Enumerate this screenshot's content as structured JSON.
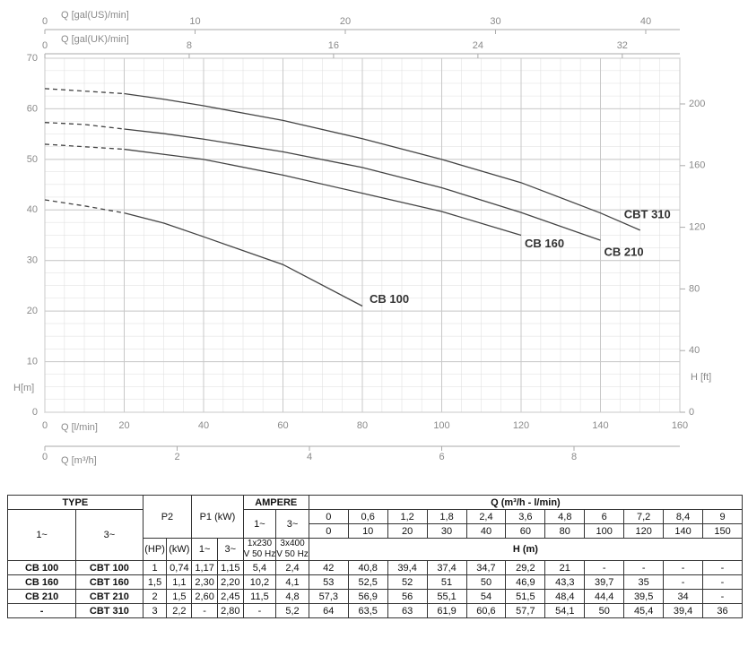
{
  "chart_data": {
    "type": "line",
    "x_label": "Q [l/min]",
    "y_label": "H[m]",
    "x": [
      0,
      10,
      20,
      30,
      40,
      60,
      80,
      100,
      120,
      140,
      150
    ],
    "xlim": [
      0,
      160
    ],
    "xticks": [
      0,
      20,
      40,
      60,
      80,
      100,
      120,
      140,
      160
    ],
    "ylim": [
      0,
      70
    ],
    "yticks": [
      0,
      10,
      20,
      30,
      40,
      50,
      60,
      70
    ],
    "grid": true,
    "series": [
      {
        "name": "CB 100",
        "color": "#444444",
        "values": [
          42,
          40.8,
          39.4,
          37.4,
          34.7,
          29.2,
          21,
          null,
          null,
          null,
          null
        ]
      },
      {
        "name": "CB 160",
        "color": "#444444",
        "values": [
          53,
          52.5,
          52,
          51,
          50,
          46.9,
          43.3,
          39.7,
          35,
          null,
          null
        ]
      },
      {
        "name": "CB 210",
        "color": "#444444",
        "values": [
          57.3,
          56.9,
          56,
          55.1,
          54,
          51.5,
          48.4,
          44.4,
          39.5,
          34,
          null
        ]
      },
      {
        "name": "CBT 310",
        "color": "#444444",
        "values": [
          64,
          63.5,
          63,
          61.9,
          60.6,
          57.7,
          54.1,
          50,
          45.4,
          39.4,
          36
        ]
      }
    ],
    "extra_axes": [
      {
        "side": "top",
        "label": "Q [gal(US)/min]",
        "lim": [
          0,
          42.27
        ],
        "ticks": [
          0,
          10,
          20,
          30,
          40
        ]
      },
      {
        "side": "top",
        "label": "Q [gal(UK)/min]",
        "lim": [
          0,
          35.19
        ],
        "ticks": [
          0,
          8,
          16,
          24,
          32
        ]
      },
      {
        "side": "bottom",
        "label": "Q [m³/h]",
        "lim": [
          0,
          9.6
        ],
        "ticks": [
          0,
          2,
          4,
          6,
          8
        ]
      },
      {
        "side": "right",
        "label": "H [ft]",
        "lim": [
          0,
          229.66
        ],
        "ticks": [
          0,
          40,
          80,
          120,
          160,
          200
        ]
      }
    ]
  },
  "table": {
    "type_header": "TYPE",
    "phase1": "1~",
    "phase3": "3~",
    "p2_header": "P2",
    "p2_units": [
      "(HP)",
      "(kW)"
    ],
    "p1_header": "P1 (kW)",
    "ampere_header": "AMPERE",
    "ampere_voltage": [
      "1x230 V 50 Hz",
      "3x400 V 50 Hz"
    ],
    "q_header": "Q (m³/h - l/min)",
    "q_m3h": [
      "0",
      "0,6",
      "1,2",
      "1,8",
      "2,4",
      "3,6",
      "4,8",
      "6",
      "7,2",
      "8,4",
      "9"
    ],
    "q_lmin": [
      "0",
      "10",
      "20",
      "30",
      "40",
      "60",
      "80",
      "100",
      "120",
      "140",
      "150"
    ],
    "h_header": "H (m)",
    "rows": [
      [
        "CB 100",
        "CBT 100",
        "1",
        "0,74",
        "1,17",
        "1,15",
        "5,4",
        "2,4",
        "42",
        "40,8",
        "39,4",
        "37,4",
        "34,7",
        "29,2",
        "21",
        "-",
        "-",
        "-",
        "-"
      ],
      [
        "CB 160",
        "CBT 160",
        "1,5",
        "1,1",
        "2,30",
        "2,20",
        "10,2",
        "4,1",
        "53",
        "52,5",
        "52",
        "51",
        "50",
        "46,9",
        "43,3",
        "39,7",
        "35",
        "-",
        "-"
      ],
      [
        "CB 210",
        "CBT 210",
        "2",
        "1,5",
        "2,60",
        "2,45",
        "11,5",
        "4,8",
        "57,3",
        "56,9",
        "56",
        "55,1",
        "54",
        "51,5",
        "48,4",
        "44,4",
        "39,5",
        "34",
        "-"
      ],
      [
        "-",
        "CBT 310",
        "3",
        "2,2",
        "-",
        "2,80",
        "-",
        "5,2",
        "64",
        "63,5",
        "63",
        "61,9",
        "60,6",
        "57,7",
        "54,1",
        "50",
        "45,4",
        "39,4",
        "36"
      ]
    ]
  }
}
